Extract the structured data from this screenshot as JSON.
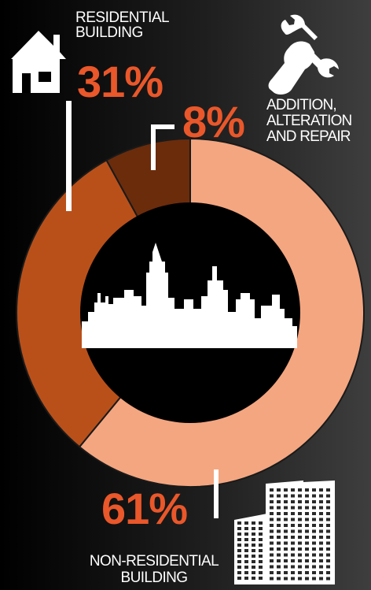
{
  "colors": {
    "non_residential": "#f4a680",
    "residential": "#b9501a",
    "addition": "#6b2c0c",
    "percent_text": "#e9572a",
    "icon": "#ffffff",
    "hole": "#000000"
  },
  "icons": {
    "residential": "house-icon",
    "addition": "wrench-hand-icon",
    "non_residential": "office-building-icon",
    "center": "city-skyline-icon"
  },
  "labels": {
    "residential_name": "RESIDENTIAL BUILDING",
    "residential_pct": "31%",
    "addition_name": "ADDITION, ALTERATION AND REPAIR",
    "addition_pct": "8%",
    "non_residential_name": "NON-RESIDENTIAL BUILDING",
    "non_residential_pct": "61%"
  },
  "chart_data": {
    "type": "pie",
    "donut": true,
    "slices": [
      {
        "label": "NON-RESIDENTIAL BUILDING",
        "value": 61
      },
      {
        "label": "RESIDENTIAL BUILDING",
        "value": 31
      },
      {
        "label": "ADDITION, ALTERATION AND REPAIR",
        "value": 8
      }
    ],
    "unit": "%",
    "start": "top",
    "direction": "clockwise"
  }
}
